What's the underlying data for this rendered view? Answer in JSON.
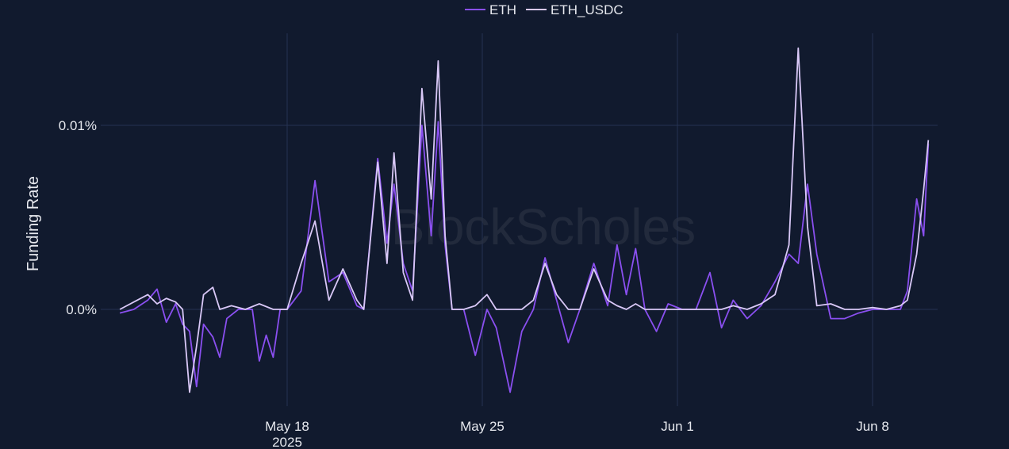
{
  "colors": {
    "background": "#111a2e",
    "grid": "#253252",
    "eth": "#8a4ff0",
    "eth_usdc": "#d9c8f7",
    "text": "#e6e8ee"
  },
  "watermark": "BlockScholes",
  "chart_data": {
    "type": "line",
    "title": "",
    "xlabel": "",
    "ylabel": "Funding Rate",
    "x_range": [
      "2025-05-12",
      "2025-06-10"
    ],
    "y_range": [
      -0.0045,
      0.0135
    ],
    "grid": true,
    "legend_position": "top-center",
    "x_ticks": [
      {
        "x": "2025-05-18",
        "label": "May 18",
        "sublabel": "2025"
      },
      {
        "x": "2025-05-25",
        "label": "May 25",
        "sublabel": ""
      },
      {
        "x": "2025-06-01",
        "label": "Jun 1",
        "sublabel": ""
      },
      {
        "x": "2025-06-08",
        "label": "Jun 8",
        "sublabel": ""
      }
    ],
    "y_ticks": [
      {
        "y": 0.0,
        "label": "0.0%"
      },
      {
        "y": 0.01,
        "label": "0.01%"
      }
    ],
    "series": [
      {
        "name": "ETH",
        "points": [
          [
            "2025-05-12 00:00",
            -0.0002
          ],
          [
            "2025-05-12 12:00",
            0.0
          ],
          [
            "2025-05-13 00:00",
            0.0005
          ],
          [
            "2025-05-13 08:00",
            0.0011
          ],
          [
            "2025-05-13 16:00",
            -0.0007
          ],
          [
            "2025-05-14 00:00",
            0.0003
          ],
          [
            "2025-05-14 06:00",
            -0.0008
          ],
          [
            "2025-05-14 12:00",
            -0.0012
          ],
          [
            "2025-05-14 18:00",
            -0.0042
          ],
          [
            "2025-05-15 00:00",
            -0.0008
          ],
          [
            "2025-05-15 08:00",
            -0.0015
          ],
          [
            "2025-05-15 14:00",
            -0.0026
          ],
          [
            "2025-05-15 20:00",
            -0.0005
          ],
          [
            "2025-05-16 06:00",
            0.0
          ],
          [
            "2025-05-16 18:00",
            0.0
          ],
          [
            "2025-05-17 00:00",
            -0.0028
          ],
          [
            "2025-05-17 06:00",
            -0.0014
          ],
          [
            "2025-05-17 12:00",
            -0.0026
          ],
          [
            "2025-05-17 18:00",
            0.0
          ],
          [
            "2025-05-18 00:00",
            0.0
          ],
          [
            "2025-05-18 12:00",
            0.001
          ],
          [
            "2025-05-19 00:00",
            0.007
          ],
          [
            "2025-05-19 12:00",
            0.0015
          ],
          [
            "2025-05-20 00:00",
            0.002
          ],
          [
            "2025-05-20 12:00",
            0.0002
          ],
          [
            "2025-05-20 18:00",
            0.0
          ],
          [
            "2025-05-21 06:00",
            0.0082
          ],
          [
            "2025-05-21 14:00",
            0.0036
          ],
          [
            "2025-05-21 20:00",
            0.0068
          ],
          [
            "2025-05-22 04:00",
            0.0025
          ],
          [
            "2025-05-22 12:00",
            0.001
          ],
          [
            "2025-05-22 20:00",
            0.01
          ],
          [
            "2025-05-23 04:00",
            0.004
          ],
          [
            "2025-05-23 10:00",
            0.0102
          ],
          [
            "2025-05-23 16:00",
            0.0035
          ],
          [
            "2025-05-23 22:00",
            0.0
          ],
          [
            "2025-05-24 08:00",
            0.0
          ],
          [
            "2025-05-24 18:00",
            -0.0025
          ],
          [
            "2025-05-25 04:00",
            0.0
          ],
          [
            "2025-05-25 12:00",
            -0.001
          ],
          [
            "2025-05-26 00:00",
            -0.0045
          ],
          [
            "2025-05-26 10:00",
            -0.0012
          ],
          [
            "2025-05-26 20:00",
            0.0
          ],
          [
            "2025-05-27 06:00",
            0.0028
          ],
          [
            "2025-05-27 16:00",
            0.0005
          ],
          [
            "2025-05-28 02:00",
            -0.0018
          ],
          [
            "2025-05-28 12:00",
            0.0
          ],
          [
            "2025-05-29 00:00",
            0.0025
          ],
          [
            "2025-05-29 12:00",
            0.0002
          ],
          [
            "2025-05-29 20:00",
            0.0035
          ],
          [
            "2025-05-30 04:00",
            0.0008
          ],
          [
            "2025-05-30 12:00",
            0.0033
          ],
          [
            "2025-05-30 20:00",
            0.0
          ],
          [
            "2025-05-31 06:00",
            -0.0012
          ],
          [
            "2025-05-31 16:00",
            0.0003
          ],
          [
            "2025-06-01 04:00",
            0.0
          ],
          [
            "2025-06-01 16:00",
            0.0
          ],
          [
            "2025-06-02 04:00",
            0.002
          ],
          [
            "2025-06-02 14:00",
            -0.001
          ],
          [
            "2025-06-03 00:00",
            0.0005
          ],
          [
            "2025-06-03 12:00",
            -0.0005
          ],
          [
            "2025-06-04 00:00",
            0.0002
          ],
          [
            "2025-06-04 12:00",
            0.0015
          ],
          [
            "2025-06-05 00:00",
            0.003
          ],
          [
            "2025-06-05 08:00",
            0.0025
          ],
          [
            "2025-06-05 16:00",
            0.0068
          ],
          [
            "2025-06-06 00:00",
            0.003
          ],
          [
            "2025-06-06 12:00",
            -0.0005
          ],
          [
            "2025-06-07 00:00",
            -0.0005
          ],
          [
            "2025-06-07 12:00",
            -0.0002
          ],
          [
            "2025-06-08 00:00",
            0.0
          ],
          [
            "2025-06-08 12:00",
            0.0
          ],
          [
            "2025-06-09 00:00",
            0.0
          ],
          [
            "2025-06-09 06:00",
            0.001
          ],
          [
            "2025-06-09 14:00",
            0.006
          ],
          [
            "2025-06-09 20:00",
            0.004
          ],
          [
            "2025-06-10 00:00",
            0.009
          ]
        ]
      },
      {
        "name": "ETH_USDC",
        "points": [
          [
            "2025-05-12 00:00",
            0.0
          ],
          [
            "2025-05-12 12:00",
            0.0004
          ],
          [
            "2025-05-13 00:00",
            0.0008
          ],
          [
            "2025-05-13 08:00",
            0.0003
          ],
          [
            "2025-05-13 16:00",
            0.0006
          ],
          [
            "2025-05-14 00:00",
            0.0004
          ],
          [
            "2025-05-14 06:00",
            0.0
          ],
          [
            "2025-05-14 12:00",
            -0.0045
          ],
          [
            "2025-05-14 18:00",
            -0.002
          ],
          [
            "2025-05-15 00:00",
            0.0008
          ],
          [
            "2025-05-15 08:00",
            0.0012
          ],
          [
            "2025-05-15 14:00",
            0.0
          ],
          [
            "2025-05-16 00:00",
            0.0002
          ],
          [
            "2025-05-16 12:00",
            0.0
          ],
          [
            "2025-05-17 00:00",
            0.0003
          ],
          [
            "2025-05-17 12:00",
            0.0
          ],
          [
            "2025-05-18 00:00",
            0.0
          ],
          [
            "2025-05-18 12:00",
            0.0025
          ],
          [
            "2025-05-19 00:00",
            0.0048
          ],
          [
            "2025-05-19 12:00",
            0.0005
          ],
          [
            "2025-05-20 00:00",
            0.0022
          ],
          [
            "2025-05-20 12:00",
            0.0005
          ],
          [
            "2025-05-20 18:00",
            0.0
          ],
          [
            "2025-05-21 06:00",
            0.008
          ],
          [
            "2025-05-21 14:00",
            0.0025
          ],
          [
            "2025-05-21 20:00",
            0.0085
          ],
          [
            "2025-05-22 04:00",
            0.002
          ],
          [
            "2025-05-22 12:00",
            0.0005
          ],
          [
            "2025-05-22 20:00",
            0.012
          ],
          [
            "2025-05-23 04:00",
            0.006
          ],
          [
            "2025-05-23 10:00",
            0.0135
          ],
          [
            "2025-05-23 16:00",
            0.004
          ],
          [
            "2025-05-23 22:00",
            0.0
          ],
          [
            "2025-05-24 08:00",
            0.0
          ],
          [
            "2025-05-24 18:00",
            0.0002
          ],
          [
            "2025-05-25 04:00",
            0.0008
          ],
          [
            "2025-05-25 12:00",
            0.0
          ],
          [
            "2025-05-26 00:00",
            0.0
          ],
          [
            "2025-05-26 10:00",
            0.0
          ],
          [
            "2025-05-26 20:00",
            0.0005
          ],
          [
            "2025-05-27 06:00",
            0.0025
          ],
          [
            "2025-05-27 16:00",
            0.0008
          ],
          [
            "2025-05-28 02:00",
            0.0
          ],
          [
            "2025-05-28 12:00",
            0.0
          ],
          [
            "2025-05-29 00:00",
            0.0022
          ],
          [
            "2025-05-29 12:00",
            0.0005
          ],
          [
            "2025-05-29 20:00",
            0.0002
          ],
          [
            "2025-05-30 04:00",
            0.0
          ],
          [
            "2025-05-30 12:00",
            0.0003
          ],
          [
            "2025-05-30 20:00",
            0.0
          ],
          [
            "2025-05-31 06:00",
            0.0
          ],
          [
            "2025-05-31 16:00",
            0.0
          ],
          [
            "2025-06-01 04:00",
            0.0
          ],
          [
            "2025-06-01 16:00",
            0.0
          ],
          [
            "2025-06-02 04:00",
            0.0
          ],
          [
            "2025-06-02 14:00",
            0.0
          ],
          [
            "2025-06-03 00:00",
            0.0002
          ],
          [
            "2025-06-03 12:00",
            0.0
          ],
          [
            "2025-06-04 00:00",
            0.0003
          ],
          [
            "2025-06-04 12:00",
            0.0008
          ],
          [
            "2025-06-05 00:00",
            0.0035
          ],
          [
            "2025-06-05 08:00",
            0.0142
          ],
          [
            "2025-06-05 16:00",
            0.0045
          ],
          [
            "2025-06-06 00:00",
            0.0002
          ],
          [
            "2025-06-06 12:00",
            0.0003
          ],
          [
            "2025-06-07 00:00",
            0.0
          ],
          [
            "2025-06-07 12:00",
            0.0
          ],
          [
            "2025-06-08 00:00",
            0.0001
          ],
          [
            "2025-06-08 12:00",
            0.0
          ],
          [
            "2025-06-09 00:00",
            0.0002
          ],
          [
            "2025-06-09 06:00",
            0.0005
          ],
          [
            "2025-06-09 14:00",
            0.003
          ],
          [
            "2025-06-09 20:00",
            0.0065
          ],
          [
            "2025-06-10 00:00",
            0.0092
          ]
        ]
      }
    ]
  }
}
